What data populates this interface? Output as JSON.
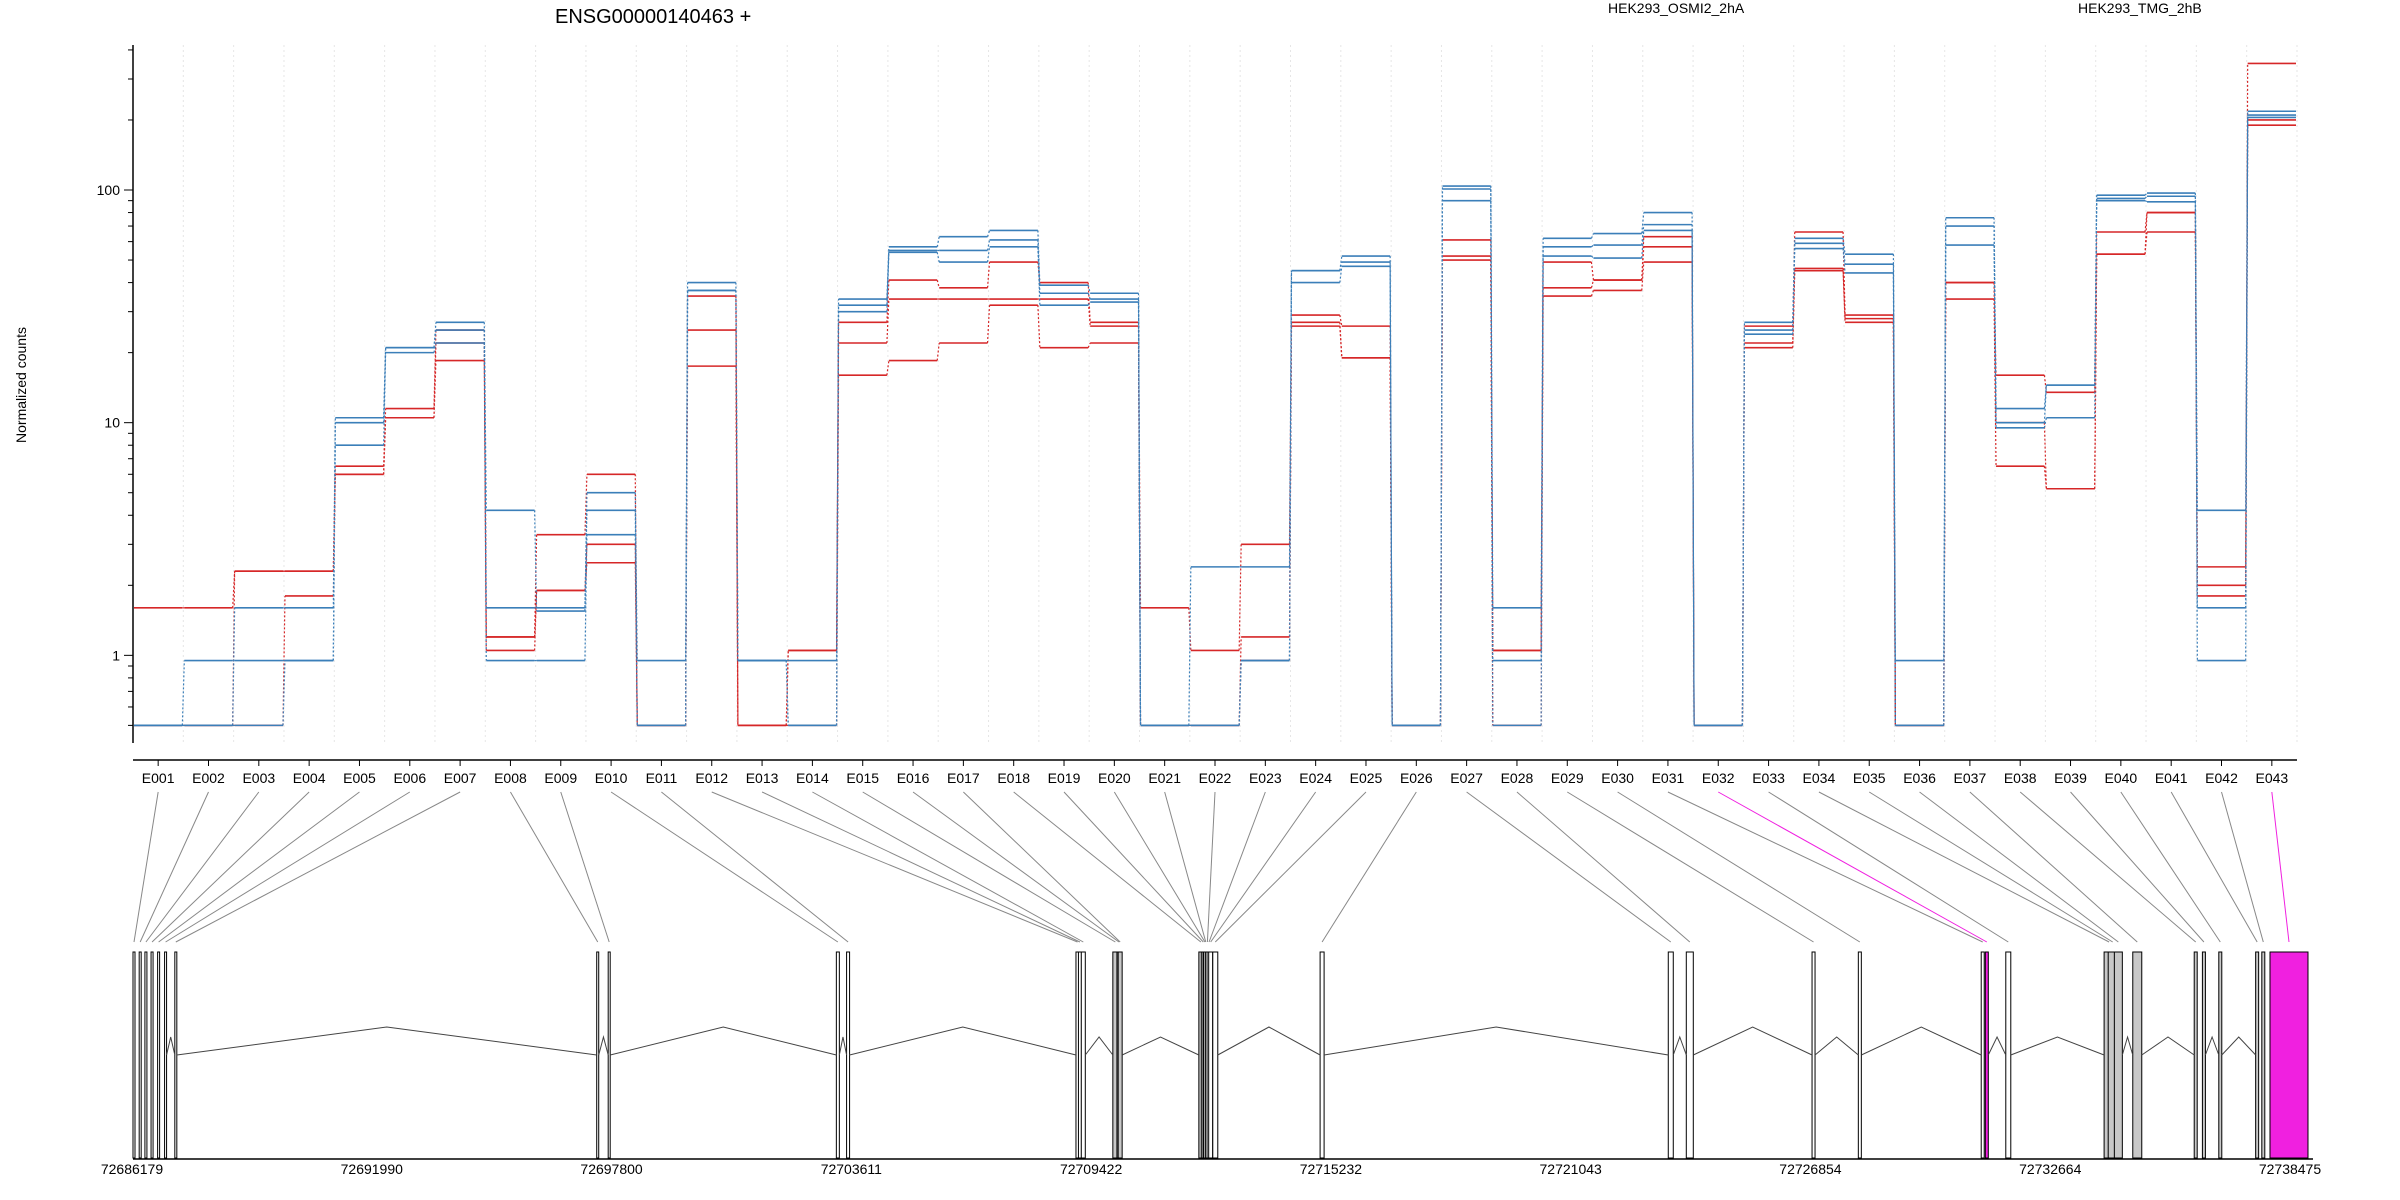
{
  "chart_data": {
    "type": "line",
    "title": "ENSG00000140463 +",
    "ylabel": "Normalized counts",
    "y_scale": "log",
    "y_ticks": [
      1,
      10,
      100
    ],
    "y_tick_labels": [
      "1",
      "10",
      "100"
    ],
    "grid": "vertical-dotted",
    "legend": [
      {
        "name": "HEK293_OSMI2_2hA",
        "color": "#d62728"
      },
      {
        "name": "HEK293_TMG_2hB",
        "color": "#3b7fb9"
      }
    ],
    "categories": [
      "E001",
      "E002",
      "E003",
      "E004",
      "E005",
      "E006",
      "E007",
      "E008",
      "E009",
      "E010",
      "E011",
      "E012",
      "E013",
      "E014",
      "E015",
      "E016",
      "E017",
      "E018",
      "E019",
      "E020",
      "E021",
      "E022",
      "E023",
      "E024",
      "E025",
      "E026",
      "E027",
      "E028",
      "E029",
      "E030",
      "E031",
      "E032",
      "E033",
      "E034",
      "E035",
      "E036",
      "E037",
      "E038",
      "E039",
      "E040",
      "E041",
      "E042",
      "E043"
    ],
    "series": [
      {
        "group": "HEK293_OSMI2_2hA",
        "color": "#d62728",
        "values": [
          1.6,
          1.6,
          2.3,
          2.3,
          6.5,
          11.5,
          25,
          1.2,
          3.3,
          6.0,
          0.5,
          35,
          0.5,
          1.05,
          27,
          41,
          38,
          49,
          40,
          27,
          1.6,
          1.05,
          3.0,
          29,
          26,
          0.5,
          61,
          1.05,
          49,
          41,
          63,
          0.5,
          26,
          66,
          29,
          0.5,
          40,
          16,
          13.5,
          66,
          80,
          2.4,
          350
        ]
      },
      {
        "group": "HEK293_OSMI2_2hA",
        "color": "#d62728",
        "values": [
          0.5,
          0.5,
          2.3,
          2.3,
          6.0,
          10.5,
          22,
          1.2,
          1.9,
          3.0,
          0.5,
          25,
          0.5,
          1.05,
          22,
          34,
          34,
          34,
          34,
          26,
          0.5,
          0.5,
          1.2,
          27,
          19,
          0.5,
          52,
          1.05,
          38,
          41,
          57,
          0.5,
          22,
          46,
          28,
          0.5,
          40,
          10,
          5.2,
          53,
          80,
          2.0,
          200
        ]
      },
      {
        "group": "HEK293_OSMI2_2hA",
        "color": "#d62728",
        "values": [
          0.5,
          0.5,
          0.5,
          1.8,
          6.0,
          10.5,
          18.5,
          1.05,
          1.9,
          2.5,
          0.5,
          17.5,
          0.5,
          0.5,
          16,
          18.5,
          22,
          32,
          21,
          22,
          0.5,
          0.5,
          0.95,
          26,
          19,
          0.5,
          50,
          0.5,
          35,
          37,
          49,
          0.5,
          21,
          45,
          27,
          0.5,
          34,
          6.5,
          5.2,
          53,
          66,
          1.8,
          190
        ]
      },
      {
        "group": "HEK293_TMG_2hB",
        "color": "#3b7fb9",
        "values": [
          0.5,
          0.95,
          0.95,
          0.95,
          10.5,
          21,
          27,
          4.2,
          1.55,
          5.0,
          0.95,
          40,
          0.95,
          0.95,
          34,
          57,
          63,
          67,
          39,
          36,
          0.5,
          2.4,
          2.4,
          45,
          52,
          0.5,
          104,
          1.6,
          62,
          65,
          80,
          0.5,
          27,
          62,
          53,
          0.95,
          76,
          11.5,
          14.5,
          95,
          97,
          4.2,
          218
        ]
      },
      {
        "group": "HEK293_TMG_2hB",
        "color": "#3b7fb9",
        "values": [
          0.5,
          0.5,
          1.6,
          1.6,
          10,
          21,
          25,
          1.6,
          1.6,
          4.2,
          0.5,
          37,
          0.95,
          0.5,
          32,
          55,
          55,
          61,
          36,
          34,
          0.5,
          0.5,
          0.95,
          45,
          49,
          0.5,
          101,
          0.95,
          57,
          58,
          71,
          0.5,
          25,
          59,
          48,
          0.5,
          70,
          10,
          14.5,
          92,
          94,
          1.6,
          210
        ]
      },
      {
        "group": "HEK293_TMG_2hB",
        "color": "#3b7fb9",
        "values": [
          0.5,
          0.5,
          0.5,
          0.95,
          8.0,
          20,
          22,
          0.95,
          0.95,
          3.3,
          0.5,
          37,
          0.95,
          0.5,
          30,
          54,
          49,
          57,
          32,
          33,
          0.5,
          0.5,
          0.95,
          40,
          47,
          0.5,
          90,
          0.5,
          52,
          51,
          67,
          0.5,
          24,
          56,
          44,
          0.5,
          58,
          9.5,
          10.5,
          90,
          89,
          0.95,
          205
        ]
      }
    ],
    "gene_axis": {
      "tick_labels": [
        "72686179",
        "72691990",
        "72697800",
        "72703611",
        "72709422",
        "72715232",
        "72721043",
        "72726854",
        "72732664",
        "72738475"
      ]
    },
    "highlighted_exons": [
      "E032",
      "E043"
    ],
    "highlight_color": "#f020e0"
  }
}
